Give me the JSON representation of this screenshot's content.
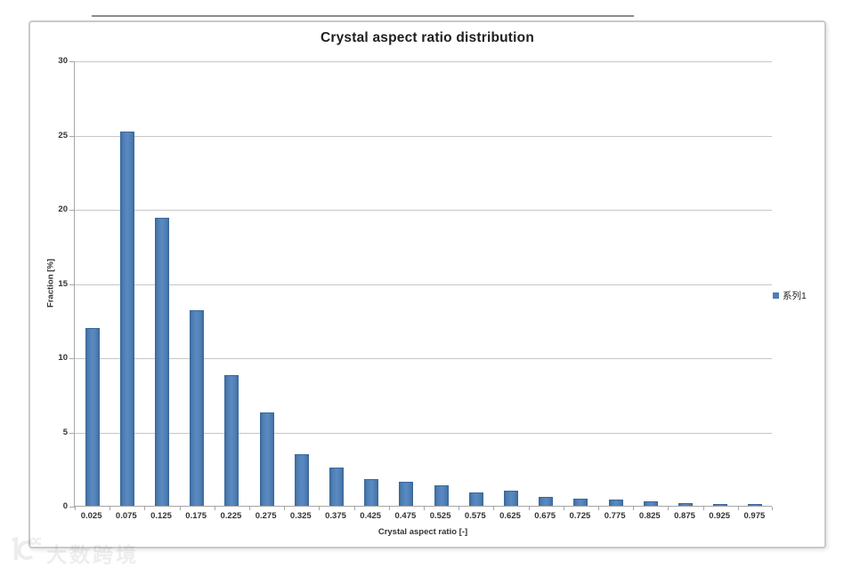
{
  "chart_data": {
    "type": "bar",
    "title": "Crystal aspect ratio distribution",
    "xlabel": "Crystal aspect ratio [-]",
    "ylabel": "Fraction [%]",
    "categories": [
      "0.025",
      "0.075",
      "0.125",
      "0.175",
      "0.225",
      "0.275",
      "0.325",
      "0.375",
      "0.425",
      "0.475",
      "0.525",
      "0.575",
      "0.625",
      "0.675",
      "0.725",
      "0.775",
      "0.825",
      "0.875",
      "0.925",
      "0.975"
    ],
    "values": [
      12.0,
      25.2,
      19.4,
      13.2,
      8.8,
      6.3,
      3.5,
      2.6,
      1.8,
      1.6,
      1.4,
      0.9,
      1.0,
      0.6,
      0.5,
      0.4,
      0.3,
      0.2,
      0.1,
      0.1
    ],
    "ylim": [
      0,
      30
    ],
    "yticks": [
      0,
      5,
      10,
      15,
      20,
      25,
      30
    ],
    "grid": "horizontal",
    "legend_position": "right",
    "bar_color": "#4a7eba",
    "series": [
      {
        "name": "系列1"
      }
    ]
  },
  "legend": {
    "label": "系列1",
    "color": "#4a7eba"
  },
  "watermark": {
    "text": "大数跨境"
  }
}
